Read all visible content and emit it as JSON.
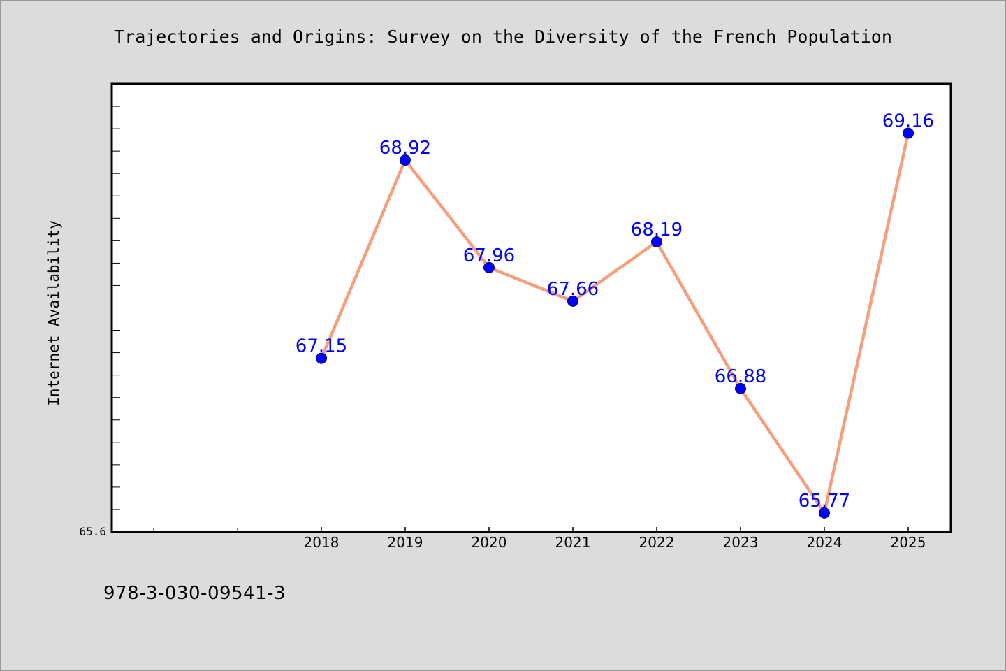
{
  "chart_data": {
    "type": "line",
    "title": "Trajectories and Origins: Survey on the Diversity of the French Population",
    "xlabel": "",
    "ylabel": "Internet Availability",
    "categories": [
      "2018",
      "2019",
      "2020",
      "2021",
      "2022",
      "2023",
      "2024",
      "2025"
    ],
    "values": [
      67.15,
      68.92,
      67.96,
      67.66,
      68.19,
      66.88,
      65.77,
      69.16
    ],
    "data_labels": [
      "67.15",
      "68.92",
      "67.96",
      "67.66",
      "68.19",
      "66.88",
      "65.77",
      "69.16"
    ],
    "ylim": [
      65.6,
      69.6
    ],
    "y_tick_label": "65.6",
    "grid": false,
    "colors": {
      "line": "#f4a07f",
      "marker": "#0000ff",
      "label": "#0000ff"
    }
  },
  "footer": {
    "code": "978-3-030-09541-3"
  }
}
